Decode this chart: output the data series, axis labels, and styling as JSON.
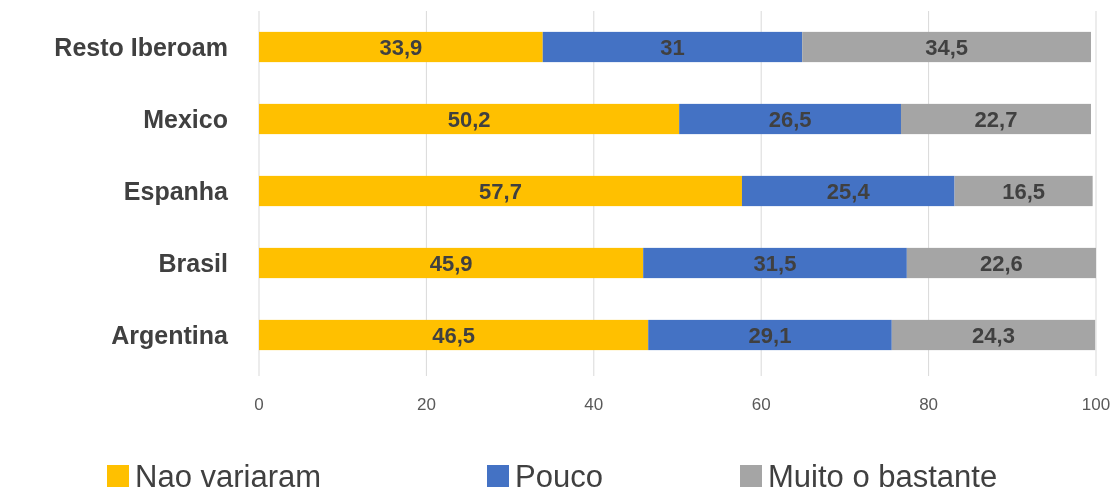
{
  "chart_data": {
    "type": "bar",
    "orientation": "horizontal",
    "stacked": true,
    "categories": [
      "Resto Iberoam",
      "Mexico",
      "Espanha",
      "Brasil",
      "Argentina"
    ],
    "series": [
      {
        "name": "Nao variaram",
        "color": "#ffc000",
        "values": [
          33.9,
          50.2,
          57.7,
          45.9,
          46.5
        ],
        "value_labels": [
          "33,9",
          "50,2",
          "57,7",
          "45,9",
          "46,5"
        ]
      },
      {
        "name": "Pouco",
        "color": "#4472c4",
        "values": [
          31,
          26.5,
          25.4,
          31.5,
          29.1
        ],
        "value_labels": [
          "31",
          "26,5",
          "25,4",
          "31,5",
          "29,1"
        ]
      },
      {
        "name": "Muito o bastante",
        "color": "#a5a5a5",
        "values": [
          34.5,
          22.7,
          16.5,
          22.6,
          24.3
        ],
        "value_labels": [
          "34,5",
          "22,7",
          "16,5",
          "22,6",
          "24,3"
        ]
      }
    ],
    "xlim": [
      0,
      100
    ],
    "xticks": [
      0,
      20,
      40,
      60,
      80,
      100
    ],
    "grid": "x",
    "legend": "bottom"
  }
}
